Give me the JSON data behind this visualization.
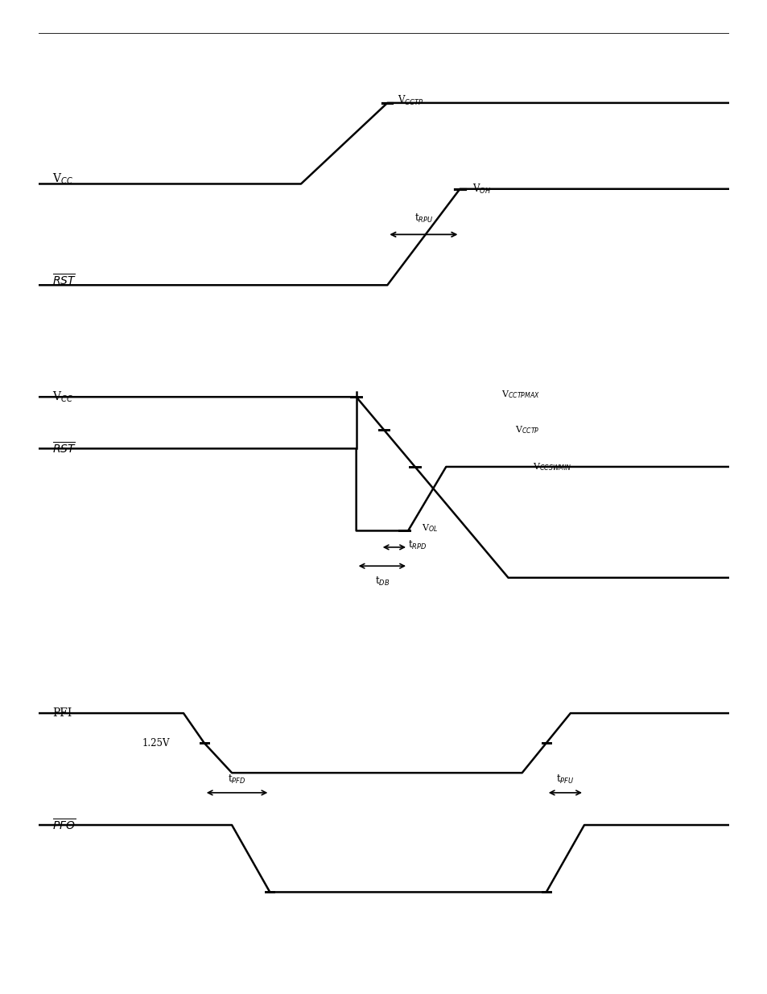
{
  "background_color": "#ffffff",
  "line_color": "#000000",
  "line_width": 1.8,
  "fig_width": 9.54,
  "fig_height": 12.35,
  "diagram1": {
    "vcc_label": "V$_{CC}$",
    "rst_label": "$\\overline{RST}$",
    "vcctp_label": "V$_{CCTP}$",
    "voh_label": "V$_{OH}$",
    "trpu_label": "t$_{RPU}$"
  },
  "diagram2": {
    "vcc_label": "V$_{CC}$",
    "rst_label": "$\\overline{RST}$",
    "vcctpmax_label": "V$_{CCTPMAX}$",
    "vcctp_label": "V$_{CCTP}$",
    "vccswmin_label": "V$_{CCSWMIN}$",
    "vol_label": "V$_{OL}$",
    "trpd_label": "t$_{RPD}$",
    "tdb_label": "t$_{DB}$"
  },
  "diagram3": {
    "pfi_label": "PFI",
    "pfo_label": "$\\overline{PFO}$",
    "v125_label": "1.25V",
    "tpfd_label": "t$_{PFD}$",
    "tpfu_label": "t$_{PFU}$"
  }
}
